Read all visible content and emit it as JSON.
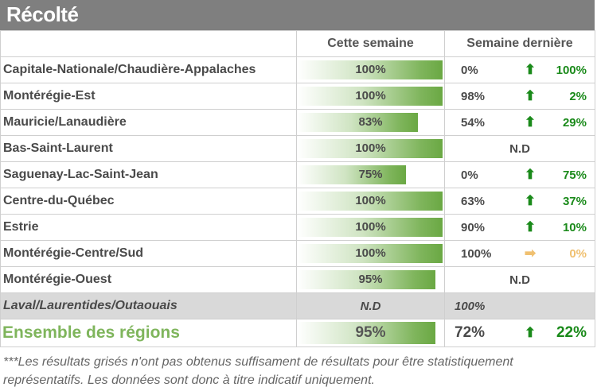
{
  "title": "Récolté",
  "headers": {
    "this_week": "Cette semaine",
    "last_week": "Semaine dernière"
  },
  "rows": [
    {
      "region": "Capitale-Nationale/Chaudière-Appalaches",
      "this_week": "100%",
      "this_week_fraction": 1.0,
      "last_week": "0%",
      "trend": "up",
      "diff": "100%"
    },
    {
      "region": "Montérégie-Est",
      "this_week": "100%",
      "this_week_fraction": 1.0,
      "last_week": "98%",
      "trend": "up",
      "diff": "2%"
    },
    {
      "region": "Mauricie/Lanaudière",
      "this_week": "83%",
      "this_week_fraction": 0.83,
      "last_week": "54%",
      "trend": "up",
      "diff": "29%"
    },
    {
      "region": "Bas-Saint-Laurent",
      "this_week": "100%",
      "this_week_fraction": 1.0,
      "last_week_nd": "N.D"
    },
    {
      "region": "Saguenay-Lac-Saint-Jean",
      "this_week": "75%",
      "this_week_fraction": 0.75,
      "last_week": "0%",
      "trend": "up",
      "diff": "75%"
    },
    {
      "region": "Centre-du-Québec",
      "this_week": "100%",
      "this_week_fraction": 1.0,
      "last_week": "63%",
      "trend": "up",
      "diff": "37%"
    },
    {
      "region": "Estrie",
      "this_week": "100%",
      "this_week_fraction": 1.0,
      "last_week": "90%",
      "trend": "up",
      "diff": "10%"
    },
    {
      "region": "Montérégie-Centre/Sud",
      "this_week": "100%",
      "this_week_fraction": 1.0,
      "last_week": "100%",
      "trend": "flat",
      "diff": "0%"
    },
    {
      "region": "Montérégie-Ouest",
      "this_week": "95%",
      "this_week_fraction": 0.95,
      "last_week_nd": "N.D"
    }
  ],
  "greyed_row": {
    "region": "Laval/Laurentides/Outaouais",
    "this_week": "N.D",
    "last_week": "100%"
  },
  "total": {
    "region": "Ensemble des régions",
    "this_week": "95%",
    "this_week_fraction": 0.95,
    "last_week": "72%",
    "trend": "up",
    "diff": "22%"
  },
  "icons": {
    "up": "up-arrow-icon",
    "flat": "right-arrow-icon"
  },
  "colors": {
    "title_bar": "#7f7f7f",
    "bar_green": "#6aa843",
    "up_arrow": "#1a8a1a",
    "flat_arrow": "#f0c070",
    "total_label": "#7fb55c",
    "grey_row": "#d9d9d9"
  },
  "footnote": "***Les résultats grisés n'ont pas obtenus suffisament de résultats pour être statistiquement représentatifs. Les données sont donc à titre indicatif uniquement."
}
